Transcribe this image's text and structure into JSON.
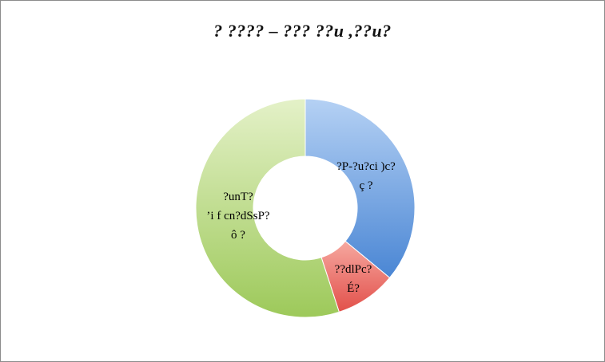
{
  "chart_data": {
    "type": "pie",
    "style": "donut",
    "title": "? ???? – ??? ??u ,??u?",
    "slices": [
      {
        "label_lines": [
          "?P-?u?ci )c?",
          "ç ?"
        ],
        "value": 36,
        "color": "#5b9bd5"
      },
      {
        "label_lines": [
          "??dlPc?",
          "É?"
        ],
        "value": 9,
        "color": "#e8635f"
      },
      {
        "label_lines": [
          "?unT?",
          "’i f cn?dSsP?",
          "ô ?"
        ],
        "value": 55,
        "color": "#9bc95b"
      }
    ],
    "legend": "none"
  }
}
